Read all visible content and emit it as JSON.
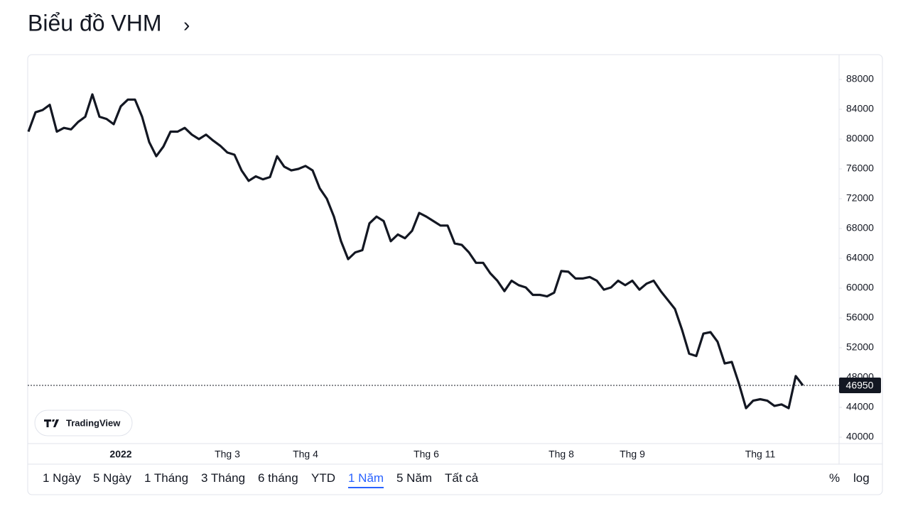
{
  "title": "Biểu đồ VHM",
  "logo_text": "TradingView",
  "range_buttons": [
    "1 Ngày",
    "5 Ngày",
    "1 Tháng",
    "3 Tháng",
    "6 tháng",
    "YTD",
    "1 Năm",
    "5 Năm",
    "Tất cả"
  ],
  "active_range_index": 6,
  "scale_buttons": [
    "%",
    "log"
  ],
  "chart_data": {
    "type": "line",
    "categories": [
      null,
      null,
      null,
      null,
      null,
      null,
      null,
      null,
      null,
      null,
      null,
      null,
      null,
      "2022",
      null,
      null,
      null,
      null,
      null,
      null,
      null,
      null,
      null,
      null,
      null,
      null,
      null,
      null,
      "Thg 3",
      null,
      null,
      null,
      null,
      null,
      null,
      null,
      null,
      null,
      null,
      "Thg 4",
      null,
      null,
      null,
      null,
      null,
      null,
      null,
      null,
      null,
      null,
      null,
      null,
      null,
      null,
      null,
      null,
      "Thg 6",
      null,
      null,
      null,
      null,
      null,
      null,
      null,
      null,
      null,
      null,
      null,
      null,
      null,
      null,
      null,
      null,
      null,
      null,
      "Thg 8",
      null,
      null,
      null,
      null,
      null,
      null,
      null,
      null,
      null,
      "Thg 9",
      null,
      null,
      null,
      null,
      null,
      null,
      null,
      null,
      null,
      null,
      null,
      null,
      null,
      null,
      null,
      null,
      null,
      "Thg 11",
      null,
      null,
      null,
      null,
      null,
      null
    ],
    "series": [
      {
        "name": "VHM",
        "color": "#131722",
        "values": [
          81000,
          83600,
          83900,
          84600,
          81000,
          81500,
          81300,
          82300,
          83000,
          86000,
          83000,
          82700,
          82000,
          84400,
          85300,
          85300,
          83000,
          79600,
          77700,
          79000,
          81000,
          81000,
          81500,
          80600,
          80000,
          80600,
          79800,
          79100,
          78200,
          77900,
          75800,
          74400,
          75000,
          74600,
          74900,
          77700,
          76300,
          75800,
          76000,
          76400,
          75800,
          73400,
          72000,
          69600,
          66300,
          63900,
          64800,
          65100,
          68700,
          69600,
          69000,
          66300,
          67200,
          66700,
          67700,
          70100,
          69600,
          69000,
          68400,
          68400,
          66000,
          65800,
          64800,
          63400,
          63400,
          62000,
          61000,
          59600,
          61000,
          60400,
          60100,
          59100,
          59100,
          58900,
          59400,
          62300,
          62200,
          61300,
          61300,
          61500,
          61000,
          59800,
          60100,
          61000,
          60400,
          61000,
          59800,
          60600,
          61000,
          59600,
          58400,
          57200,
          54400,
          51200,
          50900,
          53900,
          54100,
          52800,
          49900,
          50100,
          47200,
          43900,
          44900,
          45100,
          44900,
          44200,
          44400,
          43900,
          48200,
          46950
        ]
      }
    ],
    "ylim": [
      39143,
      91238
    ],
    "yticks": [
      40000,
      44000,
      48000,
      52000,
      56000,
      60000,
      64000,
      68000,
      72000,
      76000,
      80000,
      84000,
      88000
    ],
    "grid": false
  }
}
